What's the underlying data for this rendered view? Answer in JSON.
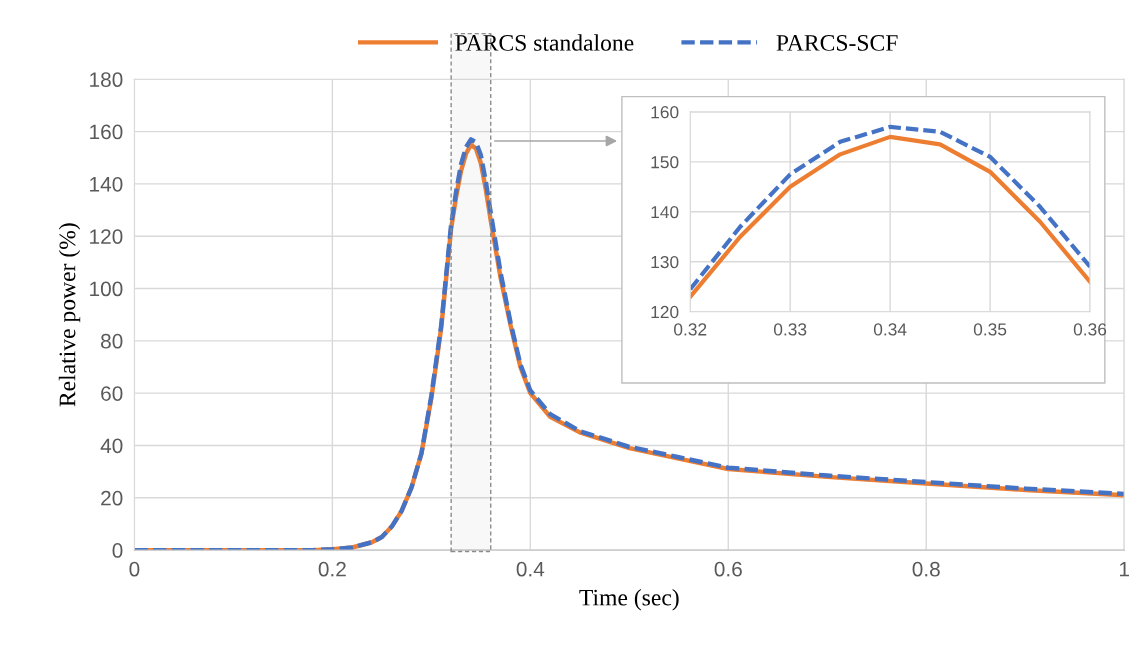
{
  "chart_data": [
    {
      "type": "line",
      "xlabel": "Time (sec)",
      "ylabel": "Relative power (%)",
      "xlim": [
        0,
        1
      ],
      "ylim": [
        0,
        180
      ],
      "xticks": [
        0,
        {
          "value": 0.2,
          "label": "0.2"
        },
        {
          "value": 0.4,
          "label": "0.4"
        },
        {
          "value": 0.6,
          "label": "0.6"
        },
        {
          "value": 0.8,
          "label": "0.8"
        },
        1
      ],
      "yticks": [
        0,
        20,
        40,
        60,
        80,
        100,
        120,
        140,
        160,
        180
      ],
      "grid": true,
      "legend": "top",
      "line_style": "solid",
      "marker": "none",
      "bands": [
        {
          "axis": "x",
          "from": 0.32,
          "to": 0.36,
          "color": "#8c8c8c"
        }
      ],
      "x": [
        0,
        0.1,
        0.18,
        0.2,
        0.22,
        0.24,
        0.25,
        0.26,
        0.27,
        0.28,
        0.29,
        0.3,
        0.31,
        0.32,
        0.325,
        0.33,
        0.335,
        0.34,
        0.345,
        0.35,
        0.355,
        0.36,
        0.37,
        0.38,
        0.39,
        0.4,
        0.42,
        0.45,
        0.5,
        0.55,
        0.6,
        0.7,
        0.8,
        0.9,
        1.0
      ],
      "series": [
        {
          "name": "PARCS standalone",
          "color": "#ed7d31",
          "values": [
            0,
            0,
            0,
            0.3,
            1,
            3,
            5,
            9,
            15,
            24,
            37,
            58,
            85,
            123,
            135,
            145,
            151.5,
            155,
            153.5,
            148,
            138,
            126,
            104,
            86,
            70,
            60,
            51,
            45,
            39,
            35,
            31,
            28,
            25.5,
            23,
            21
          ]
        },
        {
          "name": "PARCS-SCF",
          "color": "#4472c4",
          "line_style": "dashed",
          "values": [
            0,
            0,
            0,
            0.3,
            1,
            3,
            5,
            9,
            15,
            24,
            37,
            59,
            86,
            124.5,
            137,
            147.5,
            154,
            157,
            156,
            151,
            141,
            129,
            106,
            87,
            71,
            61,
            52,
            45.5,
            39.5,
            35.5,
            31.5,
            28.5,
            26,
            23.5,
            21.5
          ]
        }
      ]
    },
    {
      "type": "line",
      "xlim": [
        0.32,
        0.36
      ],
      "ylim": [
        120,
        160
      ],
      "xticks": [
        {
          "value": 0.32,
          "label": "0.32"
        },
        {
          "value": 0.33,
          "label": "0.33"
        },
        {
          "value": 0.34,
          "label": "0.34"
        },
        {
          "value": 0.35,
          "label": "0.35"
        },
        {
          "value": 0.36,
          "label": "0.36"
        }
      ],
      "yticks": [
        120,
        130,
        140,
        150,
        160
      ],
      "grid": true,
      "legend": false,
      "marker": "none",
      "x": [
        0.32,
        0.325,
        0.33,
        0.335,
        0.34,
        0.345,
        0.35,
        0.355,
        0.36
      ],
      "series": [
        {
          "color": "#ed7d31",
          "line_style": "solid",
          "values": [
            123,
            135,
            145,
            151.5,
            155,
            153.5,
            148,
            138,
            126
          ]
        },
        {
          "color": "#4472c4",
          "line_style": "dashed",
          "values": [
            124.5,
            137,
            147.5,
            154,
            157,
            156,
            151,
            141,
            129
          ]
        }
      ]
    }
  ]
}
